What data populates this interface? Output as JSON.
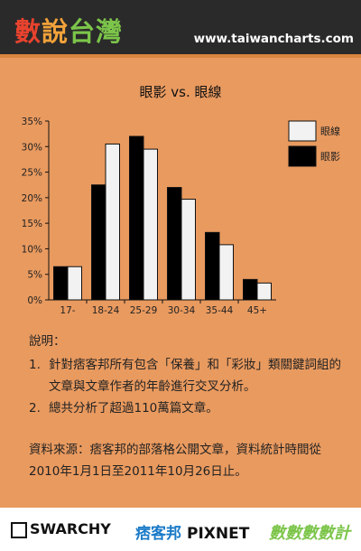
{
  "header": {
    "brand_chars": [
      "數",
      "說",
      "台",
      "灣"
    ],
    "site": "www.taiwancharts.com",
    "colors": {
      "bg": "#2a2a2a",
      "c0": "#e8432e",
      "c1": "#f2a23a",
      "c2": "#7cc54a"
    }
  },
  "background_color": "#e99a5f",
  "chart_data": {
    "type": "bar",
    "title": "眼影 vs. 眼線",
    "categories": [
      "17-",
      "18-24",
      "25-29",
      "30-34",
      "35-44",
      "45+"
    ],
    "series": [
      {
        "name": "眼影",
        "color": "#000000",
        "values": [
          6.5,
          22.5,
          32,
          22,
          13.2,
          4
        ]
      },
      {
        "name": "眼線",
        "color": "#f2f2f2",
        "values": [
          6.5,
          30.5,
          29.5,
          19.7,
          10.8,
          3.3
        ]
      }
    ],
    "ylim": [
      0,
      35
    ],
    "yticks": [
      "0%",
      "5%",
      "10%",
      "15%",
      "20%",
      "25%",
      "30%",
      "35%"
    ],
    "ytick_values": [
      0,
      5,
      10,
      15,
      20,
      25,
      30,
      35
    ],
    "legend_order": [
      "眼線",
      "眼影"
    ],
    "legend_position": "right",
    "grid": false
  },
  "notes": {
    "heading": "說明：",
    "items": [
      {
        "num": "1.",
        "text": "針對痞客邦所有包含「保養」和「彩妝」類關鍵詞組的文章與文章作者的年齡進行交叉分析。"
      },
      {
        "num": "2.",
        "text": "總共分析了超過110萬篇文章。"
      }
    ]
  },
  "source": "資料來源：痞客邦的部落格公開文章，資料統計時間從2010年1月1日至2011年10月26日止。",
  "footer": {
    "logo1": "SWARCHY",
    "logo2a": "痞客邦",
    "logo2b": "PIXNET",
    "logo3": "數數數數計"
  }
}
